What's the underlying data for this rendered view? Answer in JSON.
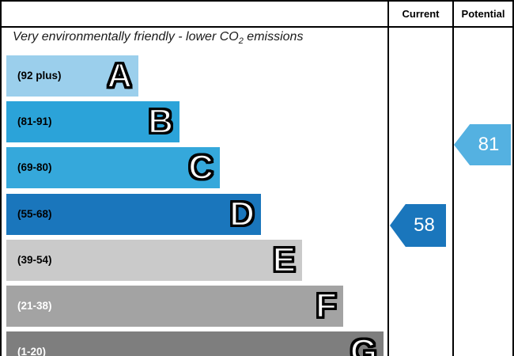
{
  "header": {
    "current": "Current",
    "potential": "Potential"
  },
  "title": {
    "text_before_sub": "Very environmentally friendly - lower CO",
    "sub": "2",
    "text_after_sub": " emissions"
  },
  "bands": [
    {
      "letter": "A",
      "range": "(92 plus)",
      "color": "#9bcfec",
      "label_color": "#000000"
    },
    {
      "letter": "B",
      "range": "(81-91)",
      "color": "#2ba3d9",
      "label_color": "#000000"
    },
    {
      "letter": "C",
      "range": "(69-80)",
      "color": "#35a8db",
      "label_color": "#000000"
    },
    {
      "letter": "D",
      "range": "(55-68)",
      "color": "#1a76bc",
      "label_color": "#000000"
    },
    {
      "letter": "E",
      "range": "(39-54)",
      "color": "#cacaca",
      "label_color": "#000000"
    },
    {
      "letter": "F",
      "range": "(21-38)",
      "color": "#a3a3a3",
      "label_color": "#ffffff"
    },
    {
      "letter": "G",
      "range": "(1-20)",
      "color": "#7e7e7e",
      "label_color": "#ffffff"
    }
  ],
  "markers": {
    "current": {
      "value": "58",
      "color": "#1a76bc"
    },
    "potential": {
      "value": "81",
      "color": "#54b1e1"
    }
  },
  "chart_data": {
    "type": "bar",
    "subtype": "epc-environmental-impact-co2-rating",
    "title": "Very environmentally friendly - lower CO2 emissions",
    "columns": [
      "Current",
      "Potential"
    ],
    "bands": [
      {
        "letter": "A",
        "range": "92 plus"
      },
      {
        "letter": "B",
        "range": "81-91"
      },
      {
        "letter": "C",
        "range": "69-80"
      },
      {
        "letter": "D",
        "range": "55-68"
      },
      {
        "letter": "E",
        "range": "39-54"
      },
      {
        "letter": "F",
        "range": "21-38"
      },
      {
        "letter": "G",
        "range": "1-20"
      }
    ],
    "markers": [
      {
        "column": "Current",
        "value": 58,
        "band": "D"
      },
      {
        "column": "Potential",
        "value": 81,
        "band": "B"
      }
    ],
    "legend_position": "top-right column headers",
    "grid": false
  }
}
